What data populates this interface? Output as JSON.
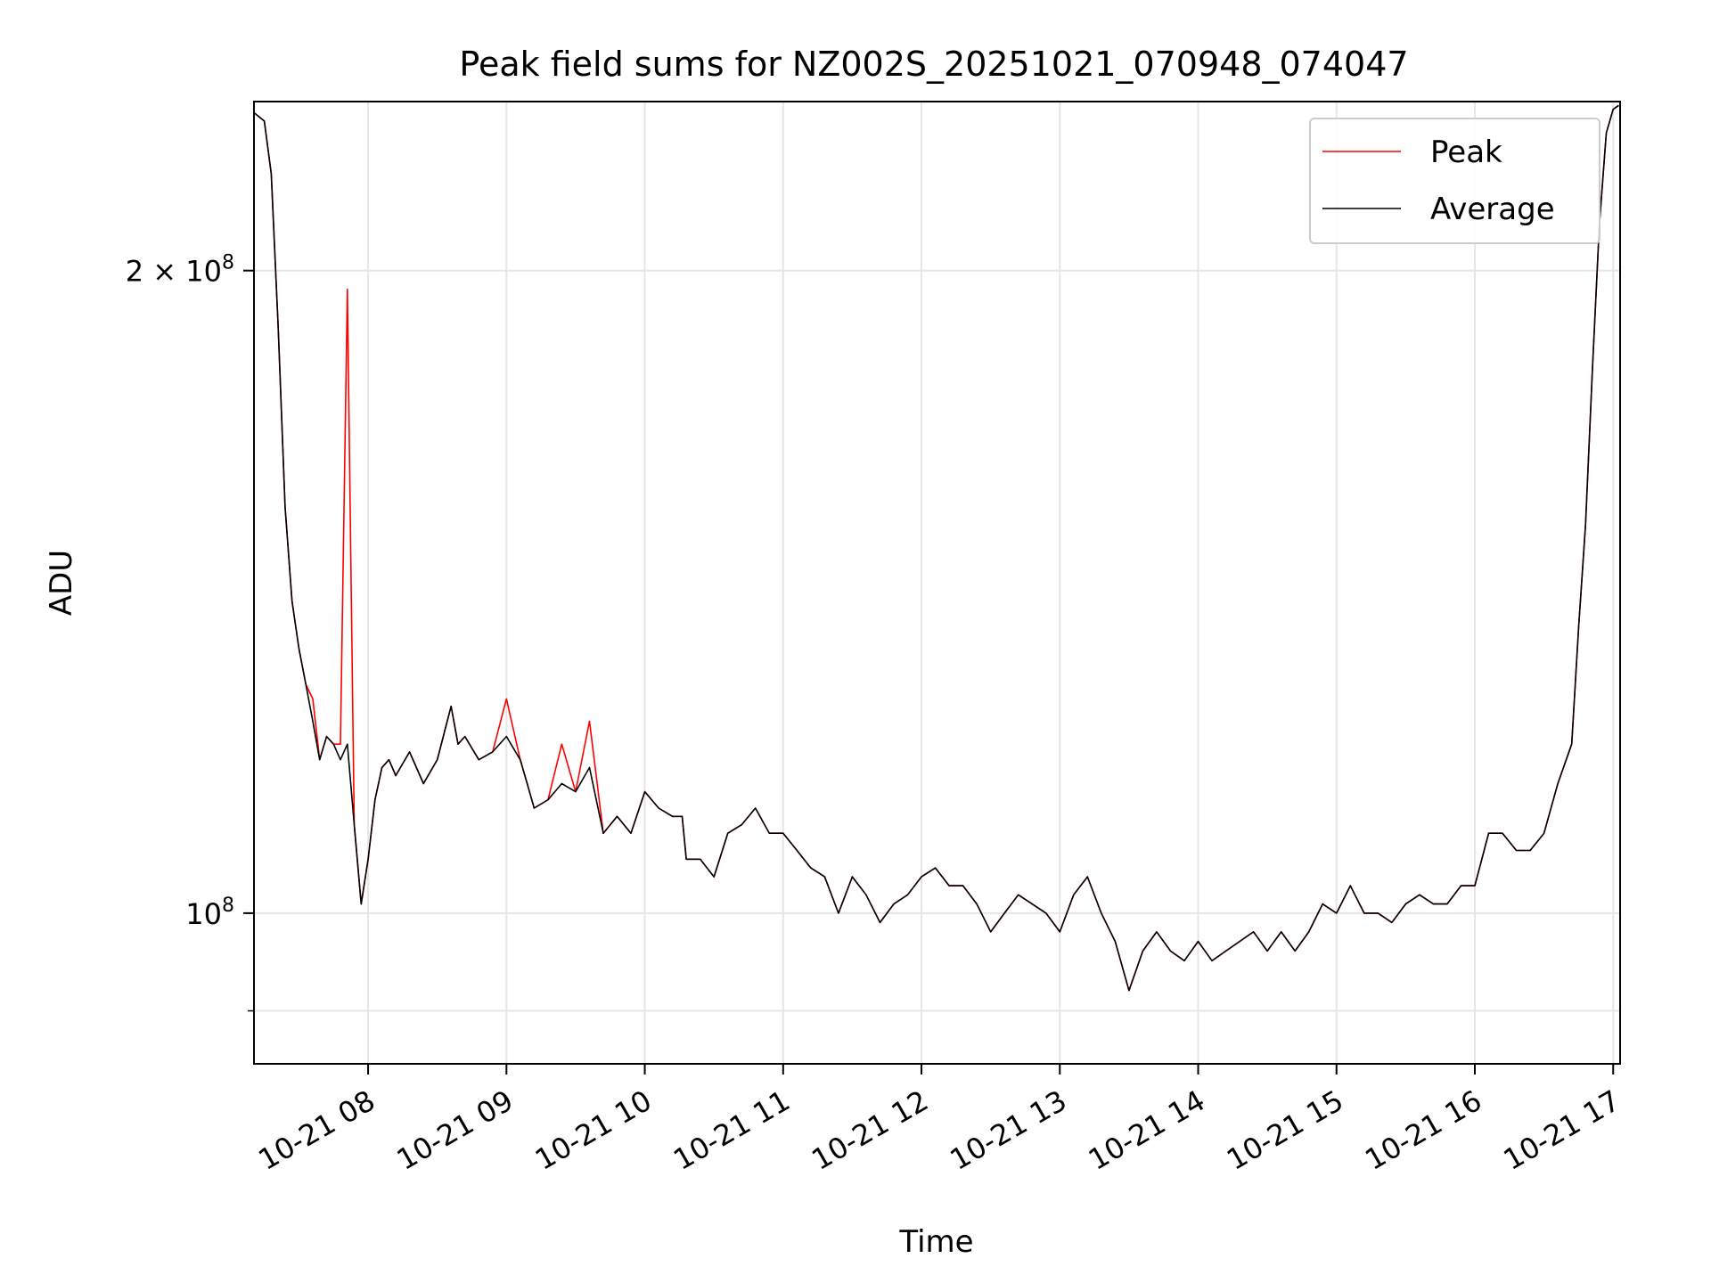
{
  "chart_data": {
    "type": "line",
    "title": "Peak field sums for NZ002S_20251021_070948_074047",
    "xlabel": "Time",
    "ylabel": "ADU",
    "yscale": "log",
    "xlim_hours": [
      7.175,
      17.05
    ],
    "ylim": [
      85000000,
      240000000
    ],
    "grid": true,
    "legend_position": "top-right",
    "x_ticks": [
      {
        "value": 8,
        "label": "10-21 08"
      },
      {
        "value": 9,
        "label": "10-21 09"
      },
      {
        "value": 10,
        "label": "10-21 10"
      },
      {
        "value": 11,
        "label": "10-21 11"
      },
      {
        "value": 12,
        "label": "10-21 12"
      },
      {
        "value": 13,
        "label": "10-21 13"
      },
      {
        "value": 14,
        "label": "10-21 14"
      },
      {
        "value": 15,
        "label": "10-21 15"
      },
      {
        "value": 16,
        "label": "10-21 16"
      },
      {
        "value": 17,
        "label": "10-21 17"
      }
    ],
    "y_ticks": [
      {
        "value": 100000000,
        "base": "10",
        "exp": "8",
        "mult": ""
      },
      {
        "value": 200000000,
        "base": "10",
        "exp": "8",
        "mult": "2 × "
      }
    ],
    "y_minor_ticks": [
      90000000
    ],
    "x_hours": [
      7.18,
      7.25,
      7.3,
      7.35,
      7.4,
      7.45,
      7.5,
      7.55,
      7.6,
      7.65,
      7.7,
      7.75,
      7.8,
      7.85,
      7.9,
      7.95,
      8.0,
      8.05,
      8.1,
      8.15,
      8.2,
      8.3,
      8.4,
      8.5,
      8.6,
      8.65,
      8.7,
      8.8,
      8.9,
      9.0,
      9.1,
      9.15,
      9.2,
      9.3,
      9.4,
      9.5,
      9.6,
      9.7,
      9.8,
      9.9,
      10.0,
      10.1,
      10.2,
      10.27,
      10.3,
      10.4,
      10.5,
      10.6,
      10.7,
      10.8,
      10.9,
      11.0,
      11.1,
      11.2,
      11.3,
      11.4,
      11.5,
      11.6,
      11.7,
      11.8,
      11.9,
      12.0,
      12.1,
      12.2,
      12.3,
      12.4,
      12.5,
      12.6,
      12.7,
      12.8,
      12.9,
      13.0,
      13.1,
      13.2,
      13.3,
      13.4,
      13.5,
      13.6,
      13.7,
      13.8,
      13.9,
      14.0,
      14.1,
      14.2,
      14.3,
      14.4,
      14.5,
      14.6,
      14.7,
      14.8,
      14.9,
      15.0,
      15.1,
      15.2,
      15.3,
      15.4,
      15.5,
      15.6,
      15.7,
      15.8,
      15.9,
      16.0,
      16.1,
      16.2,
      16.3,
      16.4,
      16.5,
      16.6,
      16.7,
      16.75,
      16.8,
      16.85,
      16.9,
      16.95,
      17.0,
      17.04
    ],
    "series": [
      {
        "name": "Average",
        "color": "#000000",
        "values": [
          237000000,
          235000000,
          222000000,
          188000000,
          155000000,
          140000000,
          133000000,
          128000000,
          123000000,
          118000000,
          121000000,
          120000000,
          118000000,
          120000000,
          110000000,
          101000000,
          106000000,
          113000000,
          117000000,
          118000000,
          116000000,
          119000000,
          115000000,
          118000000,
          125000000,
          120000000,
          121000000,
          118000000,
          119000000,
          121000000,
          118000000,
          115000000,
          112000000,
          113000000,
          115000000,
          114000000,
          117000000,
          109000000,
          111000000,
          109000000,
          114000000,
          112000000,
          111000000,
          111000000,
          106000000,
          106000000,
          104000000,
          109000000,
          110000000,
          112000000,
          109000000,
          109000000,
          107000000,
          105000000,
          104000000,
          100000000,
          104000000,
          102000000,
          99000000,
          101000000,
          102000000,
          104000000,
          105000000,
          103000000,
          103000000,
          101000000,
          98000000,
          100000000,
          102000000,
          101000000,
          100000000,
          98000000,
          102000000,
          104000000,
          100000000,
          97000000,
          92000000,
          96000000,
          98000000,
          96000000,
          95000000,
          97000000,
          95000000,
          96000000,
          97000000,
          98000000,
          96000000,
          98000000,
          96000000,
          98000000,
          101000000,
          100000000,
          103000000,
          100000000,
          100000000,
          99000000,
          101000000,
          102000000,
          101000000,
          101000000,
          103000000,
          103000000,
          109000000,
          109000000,
          107000000,
          107000000,
          109000000,
          115000000,
          120000000,
          136000000,
          152000000,
          180000000,
          210000000,
          232000000,
          238000000,
          239000000
        ]
      },
      {
        "name": "Peak",
        "color": "#ff0000",
        "values": [
          237000000,
          235000000,
          222000000,
          188000000,
          155000000,
          140000000,
          133000000,
          128000000,
          126000000,
          118000000,
          121000000,
          120000000,
          120000000,
          196000000,
          110000000,
          101000000,
          106000000,
          113000000,
          117000000,
          118000000,
          116000000,
          119000000,
          115000000,
          118000000,
          125000000,
          120000000,
          121000000,
          118000000,
          119000000,
          126000000,
          118000000,
          115000000,
          112000000,
          113000000,
          120000000,
          114000000,
          123000000,
          109000000,
          111000000,
          109000000,
          114000000,
          112000000,
          111000000,
          111000000,
          106000000,
          106000000,
          104000000,
          109000000,
          110000000,
          112000000,
          109000000,
          109000000,
          107000000,
          105000000,
          104000000,
          100000000,
          104000000,
          102000000,
          99000000,
          101000000,
          102000000,
          104000000,
          105000000,
          103000000,
          103000000,
          101000000,
          98000000,
          100000000,
          102000000,
          101000000,
          100000000,
          98000000,
          102000000,
          104000000,
          100000000,
          97000000,
          92000000,
          96000000,
          98000000,
          96000000,
          95000000,
          97000000,
          95000000,
          96000000,
          97000000,
          98000000,
          96000000,
          98000000,
          96000000,
          98000000,
          101000000,
          100000000,
          103000000,
          100000000,
          100000000,
          99000000,
          101000000,
          102000000,
          101000000,
          101000000,
          103000000,
          103000000,
          109000000,
          109000000,
          107000000,
          107000000,
          109000000,
          115000000,
          120000000,
          136000000,
          152000000,
          180000000,
          210000000,
          232000000,
          238000000,
          239000000
        ]
      }
    ],
    "legend": [
      {
        "label": "Peak",
        "color": "#ff0000"
      },
      {
        "label": "Average",
        "color": "#000000"
      }
    ]
  }
}
